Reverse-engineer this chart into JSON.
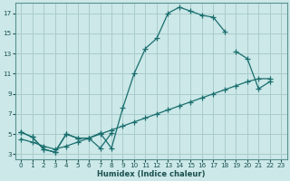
{
  "xlabel": "Humidex (Indice chaleur)",
  "bg_color": "#cce8e8",
  "grid_color": "#aacccc",
  "line_color": "#1a6e6e",
  "xlim": [
    -0.5,
    23.5
  ],
  "ylim": [
    2.5,
    18.0
  ],
  "xticks": [
    0,
    1,
    2,
    3,
    4,
    5,
    6,
    7,
    8,
    9,
    10,
    11,
    12,
    13,
    14,
    15,
    16,
    17,
    18,
    19,
    20,
    21,
    22,
    23
  ],
  "yticks": [
    3,
    5,
    7,
    9,
    11,
    13,
    15,
    17
  ],
  "curve1_x": [
    0,
    1,
    2,
    3,
    4,
    5,
    6,
    7,
    8,
    9,
    10,
    11,
    12,
    13,
    14,
    15,
    16,
    17,
    18
  ],
  "curve1_y": [
    5.2,
    4.7,
    3.5,
    3.2,
    5.0,
    4.6,
    4.6,
    5.1,
    3.6,
    7.6,
    11.0,
    13.5,
    14.5,
    17.0,
    17.6,
    17.2,
    16.8,
    16.6,
    15.2
  ],
  "curve2_x": [
    0,
    1,
    2,
    3,
    4,
    5,
    6,
    7,
    8,
    9,
    10,
    11,
    12,
    13,
    14,
    15,
    16,
    17,
    18,
    19,
    20,
    21,
    22
  ],
  "curve2_y": [
    4.5,
    4.2,
    3.8,
    3.5,
    3.8,
    4.2,
    4.6,
    5.0,
    5.4,
    5.8,
    6.2,
    6.6,
    7.0,
    7.4,
    7.8,
    8.2,
    8.6,
    9.0,
    9.4,
    9.8,
    10.2,
    10.5,
    10.5
  ],
  "curve3_x": [
    0,
    1,
    2,
    3,
    4,
    5,
    6,
    7,
    8,
    19,
    20,
    21,
    22
  ],
  "curve3_y": [
    5.2,
    4.7,
    3.5,
    3.2,
    5.0,
    4.6,
    4.6,
    3.6,
    5.1,
    13.2,
    12.5,
    9.5,
    10.2
  ]
}
